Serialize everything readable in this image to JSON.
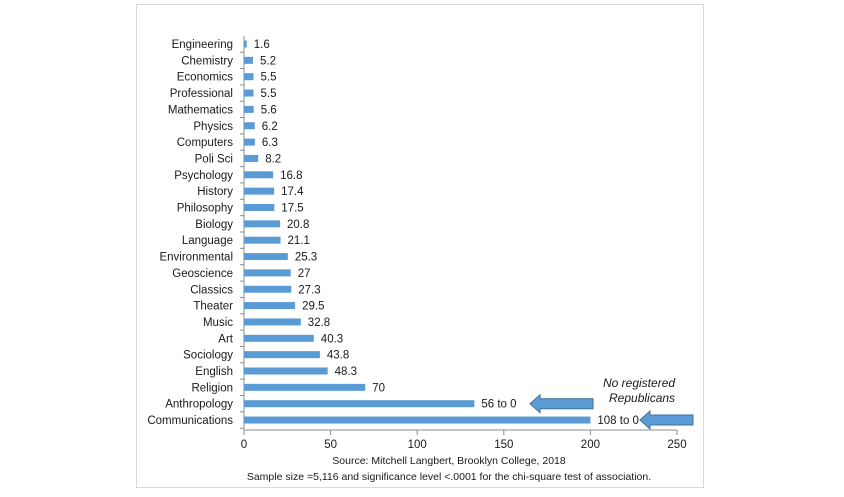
{
  "chart_data": {
    "type": "bar",
    "orientation": "horizontal",
    "categories": [
      "Engineering",
      "Chemistry",
      "Economics",
      "Professional",
      "Mathematics",
      "Physics",
      "Computers",
      "Poli Sci",
      "Psychology",
      "History",
      "Philosophy",
      "Biology",
      "Language",
      "Environmental",
      "Geoscience",
      "Classics",
      "Theater",
      "Music",
      "Art",
      "Sociology",
      "English",
      "Religion",
      "Anthropology",
      "Communications"
    ],
    "values": [
      1.6,
      5.2,
      5.5,
      5.5,
      5.6,
      6.2,
      6.3,
      8.2,
      16.8,
      17.4,
      17.5,
      20.8,
      21.1,
      25.3,
      27,
      27.3,
      29.5,
      32.8,
      40.3,
      43.8,
      48.3,
      70,
      133,
      200
    ],
    "value_labels": [
      "1.6",
      "5.2",
      "5.5",
      "5.5",
      "5.6",
      "6.2",
      "6.3",
      "8.2",
      "16.8",
      "17.4",
      "17.5",
      "20.8",
      "21.1",
      "25.3",
      "27",
      "27.3",
      "29.5",
      "32.8",
      "40.3",
      "43.8",
      "48.3",
      "70",
      "56 to 0",
      "108 to 0"
    ],
    "xlim": [
      0,
      250
    ],
    "xticks": [
      0,
      50,
      100,
      150,
      200,
      250
    ],
    "xtick_labels": [
      "0",
      "50",
      "100",
      "150",
      "200",
      "250"
    ],
    "bar_color": "#5b9bd5",
    "arrow_color": "#5b9bd5",
    "annotation": [
      "No registered",
      "Republicans"
    ],
    "source_lines": [
      "Source: Mitchell Langbert, Brooklyn College, 2018",
      "Sample size =5,116 and significance level <.0001 for the chi-square test of association."
    ],
    "grid": false
  }
}
